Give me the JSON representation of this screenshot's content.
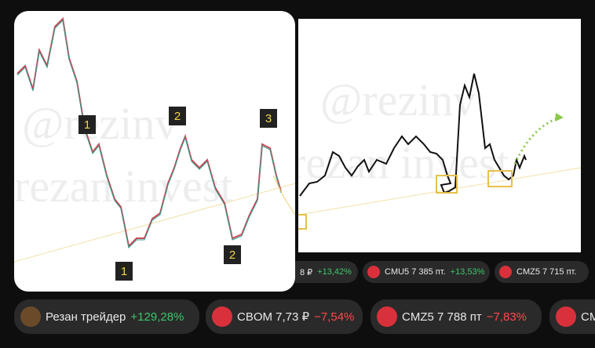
{
  "images": [
    {
      "markers": [
        "1",
        "2",
        "3",
        "1",
        "2"
      ],
      "watermark": [
        "@rezinv",
        "rezan invest"
      ]
    },
    {
      "watermark": [
        "@rezinv",
        "rezan invest"
      ]
    }
  ],
  "chips_top": [
    {
      "text": "8 ₽",
      "change": "+13,42%"
    },
    {
      "text": "CMU5 7 385 пт.",
      "change": "+13,53%"
    },
    {
      "text": "CMZ5 7 715 пт."
    }
  ],
  "chips_bottom": [
    {
      "text": "Резан трейдер",
      "change": "+129,28%"
    },
    {
      "text": "CBOM 7,73 ₽",
      "change": "−7,54%"
    },
    {
      "text": "CMZ5 7 788 пт",
      "change": "−7,83%"
    },
    {
      "text": "CM"
    }
  ]
}
